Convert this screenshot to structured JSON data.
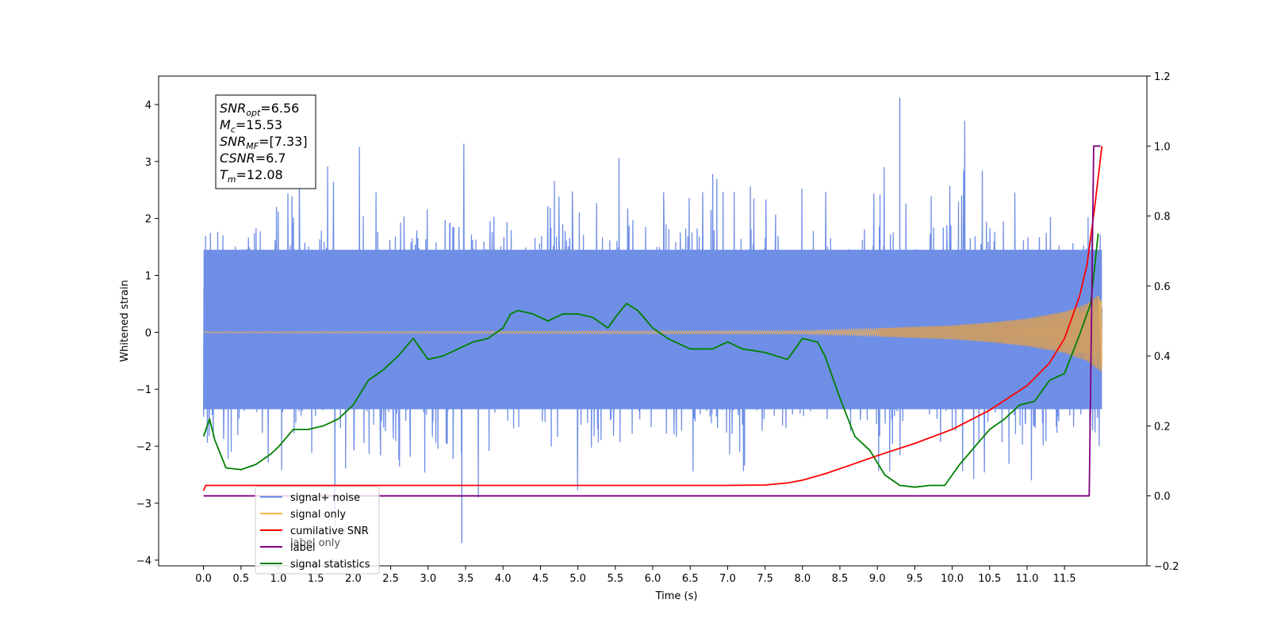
{
  "chart_data": {
    "type": "line",
    "xlabel": "Time (s)",
    "ylabel": "Whitened strain",
    "xlim": [
      -0.6,
      12.6
    ],
    "ylim": [
      -4.1,
      4.5
    ],
    "ylim_right": [
      -0.2,
      1.2
    ],
    "xticks": [
      0.0,
      0.5,
      1.0,
      1.5,
      2.0,
      2.5,
      3.0,
      3.5,
      4.0,
      4.5,
      5.0,
      5.5,
      6.0,
      6.5,
      7.0,
      7.5,
      8.0,
      8.5,
      9.0,
      9.5,
      10.0,
      10.5,
      11.0,
      11.5
    ],
    "xtick_labels": [
      "0.0",
      "0.5",
      "1.0",
      "1.5",
      "2.0",
      "2.5",
      "3.0",
      "3.5",
      "4.0",
      "4.5",
      "5.0",
      "5.5",
      "6.0",
      "6.5",
      "7.0",
      "7.5",
      "8.0",
      "8.5",
      "9.0",
      "9.5",
      "10.0",
      "10.5",
      "11.0",
      "11.5"
    ],
    "yticks_left": [
      -4,
      -3,
      -2,
      -1,
      0,
      1,
      2,
      3,
      4
    ],
    "yticks_left_labels": [
      "−4",
      "−3",
      "−2",
      "−1",
      "0",
      "1",
      "2",
      "3",
      "4"
    ],
    "yticks_right": [
      -0.2,
      0.0,
      0.2,
      0.4,
      0.6,
      0.8,
      1.0,
      1.2
    ],
    "yticks_right_labels": [
      "−0.2",
      "0.0",
      "0.2",
      "0.4",
      "0.6",
      "0.8",
      "1.0",
      "1.2"
    ],
    "annotation": [
      {
        "main": "SNR",
        "sub": "opt",
        "rest": "=6.56"
      },
      {
        "main": "M",
        "sub": "c",
        "rest": "=15.53"
      },
      {
        "main": "SNR",
        "sub": "MF",
        "rest": "=[7.33]"
      },
      {
        "main": "CSNR",
        "sub": "",
        "rest": "=6.7"
      },
      {
        "main": "T",
        "sub": "m",
        "rest": "=12.08"
      }
    ],
    "legend": {
      "placement": "lower-left",
      "entries": [
        {
          "label": "signal+ noise",
          "color": "#6f8fe6"
        },
        {
          "label": "signal only",
          "color": "#f7b24b"
        },
        {
          "label": "cumilative SNR",
          "color": "#ff0000"
        },
        {
          "label": "label",
          "color": "#800080"
        },
        {
          "label": "signal statistics",
          "color": "#008000"
        }
      ],
      "hidden_label": "label only"
    },
    "series": [
      {
        "name": "signal+ noise",
        "axis": "left",
        "color": "#6f8fe6",
        "description_stats": {
          "x_start": 0.0,
          "x_end": 12.0,
          "typical_low": -2.2,
          "typical_high": 2.4,
          "min": -3.7,
          "max": 4.12
        }
      },
      {
        "name": "signal only",
        "axis": "left",
        "color": "#f7b24b",
        "envelope": {
          "x": [
            0.0,
            8.0,
            9.0,
            10.0,
            10.5,
            11.0,
            11.5,
            11.8,
            12.0
          ],
          "amp": [
            0.01,
            0.03,
            0.07,
            0.12,
            0.17,
            0.24,
            0.36,
            0.5,
            0.7
          ]
        }
      },
      {
        "name": "cumilative SNR",
        "axis": "right",
        "color": "#ff0000",
        "x": [
          0.0,
          0.03,
          1.0,
          3.0,
          5.0,
          7.0,
          7.5,
          7.8,
          8.0,
          8.3,
          8.6,
          9.0,
          9.5,
          10.0,
          10.5,
          11.0,
          11.3,
          11.5,
          11.7,
          11.8,
          11.9,
          12.0
        ],
        "y": [
          0.015,
          0.03,
          0.03,
          0.03,
          0.03,
          0.03,
          0.031,
          0.037,
          0.045,
          0.063,
          0.085,
          0.115,
          0.15,
          0.19,
          0.245,
          0.315,
          0.38,
          0.45,
          0.57,
          0.66,
          0.82,
          1.0
        ]
      },
      {
        "name": "label",
        "axis": "right",
        "color": "#800080",
        "x": [
          0.0,
          11.83,
          11.89,
          11.98
        ],
        "y": [
          0.0,
          0.0,
          1.0,
          1.0
        ]
      },
      {
        "name": "signal statistics",
        "axis": "right",
        "color": "#008000",
        "x": [
          0.0,
          0.08,
          0.15,
          0.3,
          0.5,
          0.7,
          0.9,
          1.0,
          1.2,
          1.4,
          1.6,
          1.8,
          2.0,
          2.2,
          2.4,
          2.6,
          2.8,
          3.0,
          3.2,
          3.4,
          3.6,
          3.8,
          4.0,
          4.1,
          4.2,
          4.4,
          4.6,
          4.8,
          5.0,
          5.2,
          5.4,
          5.5,
          5.65,
          5.8,
          6.0,
          6.2,
          6.5,
          6.8,
          7.0,
          7.2,
          7.5,
          7.8,
          8.0,
          8.2,
          8.3,
          8.5,
          8.7,
          8.9,
          9.1,
          9.3,
          9.5,
          9.7,
          9.9,
          10.1,
          10.3,
          10.5,
          10.7,
          10.9,
          11.1,
          11.3,
          11.5,
          11.7,
          11.85,
          11.95
        ],
        "y": [
          0.17,
          0.22,
          0.16,
          0.08,
          0.075,
          0.09,
          0.12,
          0.14,
          0.19,
          0.19,
          0.2,
          0.22,
          0.26,
          0.33,
          0.36,
          0.4,
          0.45,
          0.39,
          0.4,
          0.42,
          0.44,
          0.45,
          0.48,
          0.52,
          0.53,
          0.52,
          0.5,
          0.52,
          0.52,
          0.51,
          0.48,
          0.51,
          0.55,
          0.53,
          0.48,
          0.45,
          0.42,
          0.42,
          0.44,
          0.42,
          0.41,
          0.39,
          0.45,
          0.44,
          0.4,
          0.28,
          0.17,
          0.13,
          0.06,
          0.03,
          0.025,
          0.03,
          0.03,
          0.09,
          0.14,
          0.19,
          0.22,
          0.26,
          0.27,
          0.33,
          0.35,
          0.46,
          0.55,
          0.75
        ]
      }
    ]
  }
}
